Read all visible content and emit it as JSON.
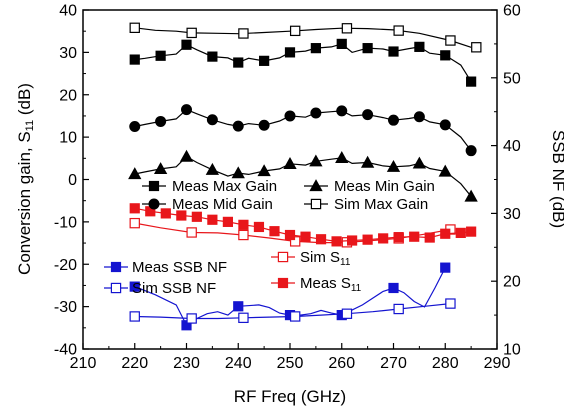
{
  "chart_data": {
    "type": "line",
    "xlabel": "RF Freq (GHz)",
    "ylabel_left": "Conversion gain, S",
    "ylabel_left_sub": "11",
    "ylabel_left_unit": " (dB)",
    "ylabel_right": "SSB NF (dB)",
    "xlim": [
      210,
      290
    ],
    "ylim_left": [
      -40,
      40
    ],
    "ylim_right": [
      10,
      60
    ],
    "xticks": [
      "210",
      "220",
      "230",
      "240",
      "250",
      "260",
      "270",
      "280",
      "290"
    ],
    "yticks_left": [
      "-40",
      "-30",
      "-20",
      "-10",
      "0",
      "10",
      "20",
      "30",
      "40"
    ],
    "yticks_right": [
      "10",
      "20",
      "30",
      "40",
      "50",
      "60"
    ],
    "grid": false,
    "colors": {
      "black": "#000000",
      "red": "#e8161b",
      "blue": "#1414d0"
    },
    "series": [
      {
        "key": "meas_max_gain",
        "name": "Meas Max Gain",
        "axis": "left",
        "color": "#000000",
        "marker": "square-filled",
        "x": [
          220,
          222,
          225,
          228,
          230,
          232,
          235,
          238,
          240,
          242,
          245,
          248,
          250,
          253,
          255,
          258,
          260,
          262,
          265,
          268,
          270,
          273,
          275,
          277,
          280,
          283,
          285
        ],
        "y": [
          28.3,
          28.6,
          29.2,
          29.6,
          31.8,
          30.6,
          29.0,
          28.7,
          27.6,
          28.6,
          28.0,
          28.7,
          30.0,
          30.3,
          31.0,
          31.3,
          32.0,
          30.0,
          31.0,
          30.8,
          30.2,
          30.9,
          31.3,
          29.8,
          29.3,
          27.0,
          23.1
        ],
        "marked_x": [
          220,
          225,
          230,
          235,
          240,
          245,
          250,
          255,
          260,
          265,
          270,
          275,
          280,
          285
        ]
      },
      {
        "key": "meas_mid_gain",
        "name": "Meas Mid Gain",
        "axis": "left",
        "color": "#000000",
        "marker": "circle-filled",
        "x": [
          220,
          222,
          225,
          228,
          230,
          232,
          235,
          238,
          240,
          242,
          245,
          248,
          250,
          253,
          255,
          258,
          260,
          262,
          265,
          268,
          270,
          273,
          275,
          277,
          280,
          283,
          285
        ],
        "y": [
          12.5,
          13.0,
          13.7,
          14.3,
          16.5,
          15.5,
          14.1,
          13.0,
          12.6,
          13.2,
          12.8,
          13.8,
          15.0,
          14.7,
          15.7,
          16.0,
          16.2,
          15.0,
          15.3,
          14.6,
          14.0,
          14.4,
          14.8,
          13.6,
          12.9,
          10.0,
          6.8
        ],
        "marked_x": [
          220,
          225,
          230,
          235,
          240,
          245,
          250,
          255,
          260,
          265,
          270,
          275,
          280,
          285
        ]
      },
      {
        "key": "meas_min_gain",
        "name": "Meas Min Gain",
        "axis": "left",
        "color": "#000000",
        "marker": "triangle-filled",
        "x": [
          220,
          222,
          225,
          228,
          230,
          232,
          235,
          238,
          240,
          242,
          245,
          248,
          250,
          253,
          255,
          258,
          260,
          262,
          265,
          268,
          270,
          273,
          275,
          277,
          280,
          283,
          285
        ],
        "y": [
          1.3,
          1.8,
          2.5,
          3.0,
          5.4,
          4.0,
          2.3,
          0.8,
          1.5,
          1.2,
          2.0,
          2.5,
          3.7,
          3.4,
          4.3,
          4.8,
          5.1,
          3.8,
          4.0,
          3.2,
          3.0,
          3.2,
          3.8,
          2.6,
          1.9,
          -1.0,
          -4.0
        ],
        "marked_x": [
          220,
          225,
          230,
          235,
          240,
          245,
          250,
          255,
          260,
          265,
          270,
          275,
          280,
          285
        ]
      },
      {
        "key": "sim_max_gain",
        "name": "Sim Max Gain",
        "axis": "left",
        "color": "#000000",
        "marker": "square-open",
        "x": [
          220,
          224,
          228,
          231,
          236,
          240,
          245,
          250,
          255,
          260,
          265,
          270,
          275,
          281,
          285
        ],
        "y": [
          35.8,
          35.2,
          35.0,
          34.6,
          34.5,
          34.4,
          34.7,
          35.0,
          35.4,
          35.7,
          35.6,
          35.3,
          34.5,
          32.8,
          31.2
        ],
        "marked_x": [
          220,
          231,
          241,
          251,
          261,
          271,
          281,
          286
        ]
      },
      {
        "key": "sim_s11",
        "name": "Sim S",
        "name_sub": "11",
        "axis": "left",
        "color": "#e8161b",
        "marker": "square-open",
        "x": [
          220,
          225,
          231,
          236,
          241,
          246,
          251,
          256,
          260,
          265,
          271,
          276,
          281
        ],
        "y": [
          -10.3,
          -11.4,
          -12.5,
          -12.6,
          -13.1,
          -13.8,
          -14.6,
          -14.9,
          -14.9,
          -14.5,
          -13.9,
          -12.9,
          -11.8
        ],
        "marked_x": [
          220,
          231,
          241,
          251,
          261,
          271,
          281
        ]
      },
      {
        "key": "meas_s11",
        "name": "Meas S",
        "name_sub": "11",
        "axis": "left",
        "color": "#e8161b",
        "marker": "square-filled",
        "x": [
          220,
          223,
          226,
          229,
          232,
          235,
          238,
          241,
          244,
          247,
          250,
          253,
          256,
          259,
          262,
          265,
          268,
          271,
          274,
          277,
          280,
          283,
          285
        ],
        "y": [
          -6.8,
          -7.5,
          -8.0,
          -8.5,
          -8.8,
          -9.5,
          -10.0,
          -10.7,
          -11.2,
          -12.2,
          -13.1,
          -13.5,
          -14.1,
          -14.6,
          -14.4,
          -14.2,
          -13.9,
          -13.6,
          -13.5,
          -13.7,
          -12.8,
          -12.6,
          -12.3
        ],
        "marked_x": [
          220,
          223,
          226,
          229,
          232,
          235,
          238,
          241,
          244,
          247,
          250,
          253,
          256,
          259,
          262,
          265,
          268,
          271,
          274,
          277,
          280,
          283,
          285
        ]
      },
      {
        "key": "meas_ssb_nf",
        "name": "Meas SSB NF",
        "axis": "right",
        "color": "#1414d0",
        "marker": "square-filled",
        "x": [
          220,
          224,
          228,
          230,
          232,
          234,
          236,
          238,
          240,
          244,
          246,
          248,
          250,
          252,
          254,
          256,
          258,
          260,
          264,
          266,
          268,
          270,
          272,
          274,
          276,
          278,
          280
        ],
        "y": [
          19.2,
          18.0,
          16.5,
          13.5,
          14.5,
          15.2,
          15.5,
          15.0,
          16.3,
          16.5,
          16.1,
          15.3,
          15.0,
          15.0,
          15.2,
          15.7,
          15.3,
          15.0,
          16.5,
          17.5,
          18.5,
          19.0,
          18.3,
          17.0,
          16.2,
          19.0,
          22.0
        ],
        "marked_x": [
          220,
          230,
          240,
          250,
          260,
          270,
          280
        ]
      },
      {
        "key": "sim_ssb_nf",
        "name": "Sim SSB NF",
        "axis": "right",
        "color": "#1414d0",
        "marker": "square-open",
        "x": [
          220,
          225,
          231,
          236,
          241,
          246,
          251,
          256,
          261,
          266,
          271,
          276,
          281
        ],
        "y": [
          14.8,
          14.7,
          14.5,
          14.5,
          14.6,
          14.7,
          14.8,
          15.0,
          15.2,
          15.5,
          15.9,
          16.3,
          16.7
        ],
        "marked_x": [
          220,
          231,
          241,
          251,
          261,
          271,
          281
        ]
      }
    ],
    "legend": {
      "black_group": [
        "meas_max_gain",
        "meas_min_gain",
        "meas_mid_gain",
        "sim_max_gain"
      ],
      "red_group": [
        "sim_s11",
        "meas_s11"
      ],
      "blue_group": [
        "meas_ssb_nf",
        "sim_ssb_nf"
      ]
    }
  }
}
